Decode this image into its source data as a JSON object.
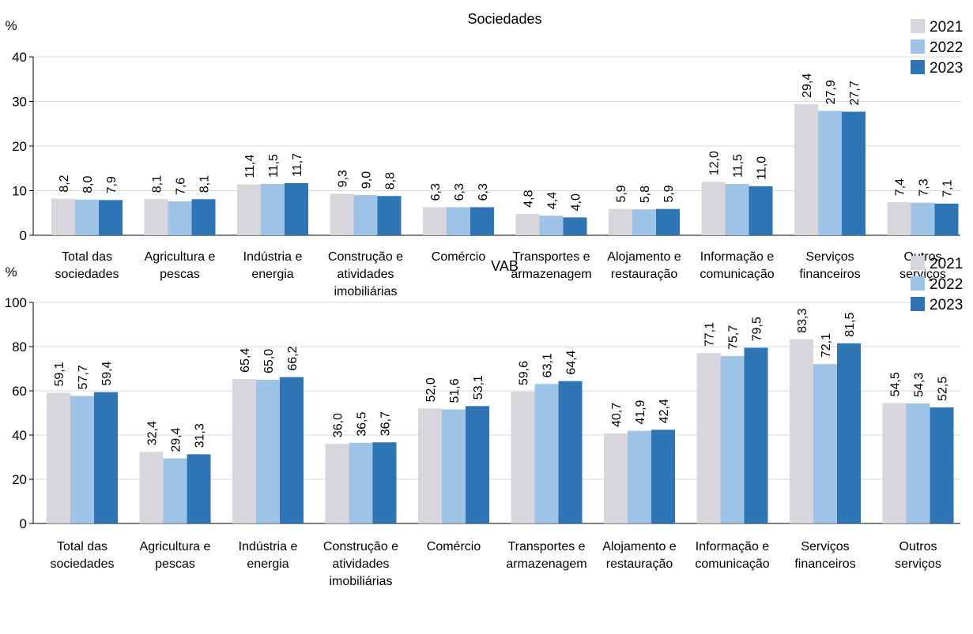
{
  "chart_data": [
    {
      "type": "bar",
      "title": "Sociedades",
      "ylabel": "%",
      "ylim": [
        0,
        40
      ],
      "yticks": [
        "0",
        "10",
        "20",
        "30",
        "40"
      ],
      "grid": true,
      "legend_position": "top-right",
      "categories": [
        [
          "Total das",
          "sociedades"
        ],
        [
          "Agricultura e",
          "pescas"
        ],
        [
          "Indústria e",
          "energia"
        ],
        [
          "Construção e",
          "atividades",
          "imobiliárias"
        ],
        [
          "Comércio"
        ],
        [
          "Transportes e",
          "armazenagem"
        ],
        [
          "Alojamento e",
          "restauração"
        ],
        [
          "Informação e",
          "comunicação"
        ],
        [
          "Serviços",
          "financeiros"
        ],
        [
          "Outros",
          "serviços"
        ]
      ],
      "series": [
        {
          "name": "2021",
          "color": "#d9d5dc",
          "values": [
            8.2,
            8.1,
            11.4,
            9.3,
            6.3,
            4.8,
            5.9,
            12.0,
            29.4,
            7.4
          ],
          "labels": [
            "8,2",
            "8,1",
            "11,4",
            "9,3",
            "6,3",
            "4,8",
            "5,9",
            "12,0",
            "29,4",
            "7,4"
          ]
        },
        {
          "name": "2022",
          "color": "#9dc3e6",
          "values": [
            8.0,
            7.6,
            11.5,
            9.0,
            6.3,
            4.4,
            5.8,
            11.5,
            27.9,
            7.3
          ],
          "labels": [
            "8,0",
            "7,6",
            "11,5",
            "9,0",
            "6,3",
            "4,4",
            "5,8",
            "11,5",
            "27,9",
            "7,3"
          ]
        },
        {
          "name": "2023",
          "color": "#2e75b6",
          "values": [
            7.9,
            8.1,
            11.7,
            8.8,
            6.3,
            4.0,
            5.9,
            11.0,
            27.7,
            7.1
          ],
          "labels": [
            "7,9",
            "8,1",
            "11,7",
            "8,8",
            "6,3",
            "4,0",
            "5,9",
            "11,0",
            "27,7",
            "7,1"
          ]
        }
      ]
    },
    {
      "type": "bar",
      "title": "VAB",
      "ylabel": "%",
      "ylim": [
        0,
        100
      ],
      "yticks": [
        "0",
        "20",
        "40",
        "60",
        "80",
        "100"
      ],
      "grid": true,
      "legend_position": "top-right",
      "categories": [
        [
          "Total das",
          "sociedades"
        ],
        [
          "Agricultura e",
          "pescas"
        ],
        [
          "Indústria e",
          "energia"
        ],
        [
          "Construção e",
          "atividades",
          "imobiliárias"
        ],
        [
          "Comércio"
        ],
        [
          "Transportes e",
          "armazenagem"
        ],
        [
          "Alojamento e",
          "restauração"
        ],
        [
          "Informação e",
          "comunicação"
        ],
        [
          "Serviços",
          "financeiros"
        ],
        [
          "Outros",
          "serviços"
        ]
      ],
      "series": [
        {
          "name": "2021",
          "color": "#d9d5dc",
          "values": [
            59.1,
            32.4,
            65.4,
            36.0,
            52.0,
            59.6,
            40.7,
            77.1,
            83.3,
            54.5
          ],
          "labels": [
            "59,1",
            "32,4",
            "65,4",
            "36,0",
            "52,0",
            "59,6",
            "40,7",
            "77,1",
            "83,3",
            "54,5"
          ]
        },
        {
          "name": "2022",
          "color": "#9dc3e6",
          "values": [
            57.7,
            29.4,
            65.0,
            36.5,
            51.6,
            63.1,
            41.9,
            75.7,
            72.1,
            54.3
          ],
          "labels": [
            "57,7",
            "29,4",
            "65,0",
            "36,5",
            "51,6",
            "63,1",
            "41,9",
            "75,7",
            "72,1",
            "54,3"
          ]
        },
        {
          "name": "2023",
          "color": "#2e75b6",
          "values": [
            59.4,
            31.3,
            66.2,
            36.7,
            53.1,
            64.4,
            42.4,
            79.5,
            81.5,
            52.5
          ],
          "labels": [
            "59,4",
            "31,3",
            "66,2",
            "36,7",
            "53,1",
            "64,4",
            "42,4",
            "79,5",
            "81,5",
            "52,5"
          ]
        }
      ]
    }
  ]
}
